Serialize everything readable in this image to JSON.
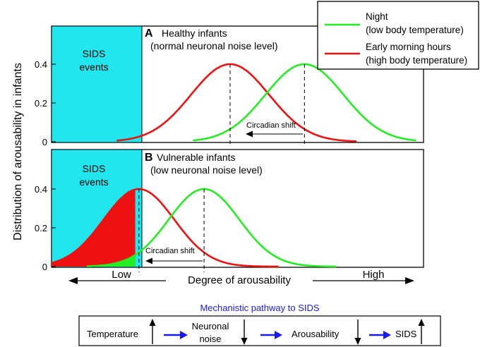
{
  "figure": {
    "y_axis_label": "Distribution of arousability in infants",
    "colors": {
      "sids_zone": "#22e6ee",
      "night": "#22ee22",
      "morning": "#ee1111",
      "pathway_title": "#1a1aee",
      "arrow_blue": "#1a1aee"
    }
  },
  "legend": {
    "night_line1": "Night",
    "night_line2": "(low body temperature)",
    "morning_line1": "Early morning hours",
    "morning_line2": "(high body temperature)"
  },
  "panel_a": {
    "letter": "A",
    "title": "Healthy infants",
    "subtitle": "(normal neuronal noise level)",
    "sids_line1": "SIDS",
    "sids_line2": "events",
    "shift_label": "Circadian shift",
    "ticks": [
      "0",
      "0.2",
      "0.4"
    ]
  },
  "panel_b": {
    "letter": "B",
    "title": "Vulnerable infants",
    "subtitle": "(low neuronal noise level)",
    "sids_line1": "SIDS",
    "sids_line2": "events",
    "shift_label": "Circadian shift",
    "ticks": [
      "0",
      "0.2",
      "0.4"
    ]
  },
  "x_axis": {
    "low": "Low",
    "center": "Degree of arousability",
    "high": "High"
  },
  "pathway": {
    "title": "Mechanistic pathway to SIDS",
    "steps": [
      {
        "label": "Temperature",
        "direction": "up"
      },
      {
        "label_line1": "Neuronal",
        "label_line2": "noise",
        "direction": "down"
      },
      {
        "label": "Arousability",
        "direction": "down"
      },
      {
        "label": "SIDS",
        "direction": "up"
      }
    ]
  },
  "chart_data": [
    {
      "type": "area",
      "title": "Healthy infants",
      "ylabel": "Distribution of arousability in infants",
      "xlabel": "Degree of arousability",
      "ylim": [
        0,
        0.55
      ],
      "yticks": [
        0,
        0.2,
        0.4
      ],
      "series": [
        {
          "name": "Early morning hours",
          "peak_x": 0.48,
          "peak_y": 0.4,
          "sd": 0.105,
          "x_range": [
            0.175,
            0.82
          ]
        },
        {
          "name": "Night",
          "peak_x": 0.68,
          "peak_y": 0.4,
          "sd": 0.105,
          "x_range": [
            0.38,
            0.98
          ]
        }
      ],
      "sids_threshold_x": 0.225
    },
    {
      "type": "area",
      "title": "Vulnerable infants",
      "ylabel": "Distribution of arousability in infants",
      "xlabel": "Degree of arousability",
      "ylim": [
        0,
        0.55
      ],
      "yticks": [
        0,
        0.2,
        0.4
      ],
      "series": [
        {
          "name": "Early morning hours",
          "peak_x": 0.235,
          "peak_y": 0.4,
          "sd": 0.095,
          "x_range": [
            0.0,
            0.61
          ]
        },
        {
          "name": "Night",
          "peak_x": 0.41,
          "peak_y": 0.4,
          "sd": 0.095,
          "x_range": [
            0.095,
            0.765
          ]
        }
      ],
      "sids_threshold_x": 0.225
    }
  ]
}
